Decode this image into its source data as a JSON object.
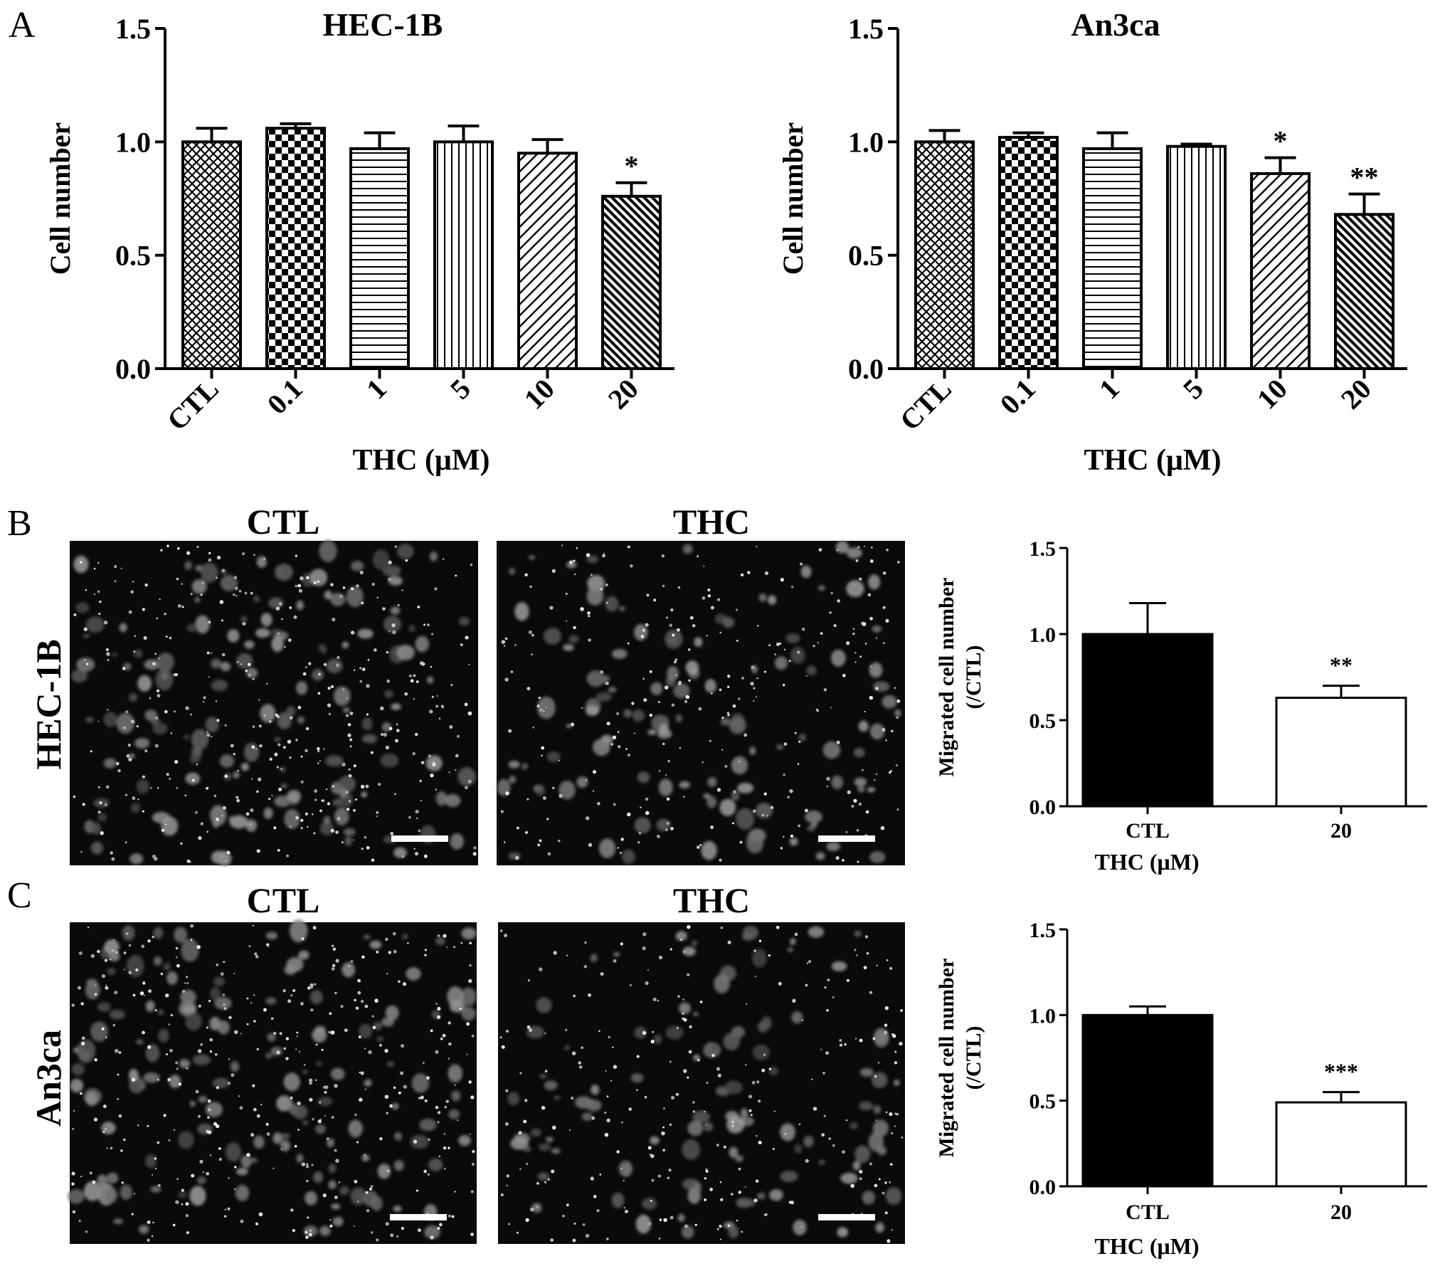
{
  "panels": {
    "A": "A",
    "B": "B",
    "C": "C"
  },
  "colors": {
    "axis": "#000000",
    "bar_fill_dark": "#000000",
    "bar_fill_light": "#ffffff",
    "micrograph_background": "#0a0a0a",
    "cell_glow": "#9a9a9a",
    "scale_bar": "#ffffff"
  },
  "micrographs": {
    "B": {
      "row_label": "HEC-1B",
      "left_title": "CTL",
      "right_title": "THC",
      "content": "fluorescent-migrated-cells",
      "scale_bar": true
    },
    "C": {
      "row_label": "An3ca",
      "left_title": "CTL",
      "right_title": "THC",
      "content": "fluorescent-migrated-cells",
      "scale_bar": true
    }
  },
  "chart_data": [
    {
      "id": "A-left",
      "type": "bar",
      "title": "HEC-1B",
      "xlabel": "THC (μM)",
      "ylabel": "Cell number",
      "categories": [
        "CTL",
        "0.1",
        "1",
        "5",
        "10",
        "20"
      ],
      "values": [
        1.0,
        1.06,
        0.97,
        1.0,
        0.95,
        0.76
      ],
      "errors": [
        0.06,
        0.02,
        0.07,
        0.07,
        0.06,
        0.06
      ],
      "significance": [
        "",
        "",
        "",
        "",
        "",
        "*"
      ],
      "patterns": [
        "crosshatch",
        "checker",
        "horizontal",
        "vertical",
        "diagonal",
        "diagonal-dense"
      ],
      "ylim": [
        0,
        1.5
      ],
      "yticks": [
        "0.0",
        "0.5",
        "1.0",
        "1.5"
      ],
      "ytick_values": [
        0,
        0.5,
        1.0,
        1.5
      ],
      "grid": false,
      "legend": "none"
    },
    {
      "id": "A-right",
      "type": "bar",
      "title": "An3ca",
      "xlabel": "THC (μM)",
      "ylabel": "Cell number",
      "categories": [
        "CTL",
        "0.1",
        "1",
        "5",
        "10",
        "20"
      ],
      "values": [
        1.0,
        1.02,
        0.97,
        0.98,
        0.86,
        0.68
      ],
      "errors": [
        0.05,
        0.02,
        0.07,
        0.01,
        0.07,
        0.09
      ],
      "significance": [
        "",
        "",
        "",
        "",
        "*",
        "**"
      ],
      "patterns": [
        "crosshatch",
        "checker",
        "horizontal",
        "vertical",
        "diagonal",
        "diagonal-dense"
      ],
      "ylim": [
        0,
        1.5
      ],
      "yticks": [
        "0.0",
        "0.5",
        "1.0",
        "1.5"
      ],
      "ytick_values": [
        0,
        0.5,
        1.0,
        1.5
      ],
      "grid": false,
      "legend": "none"
    },
    {
      "id": "B-chart",
      "type": "bar",
      "title": "",
      "xlabel": "THC (μM)",
      "ylabel": "Migrated cell number",
      "ylabel2": "(/CTL)",
      "categories": [
        "CTL",
        "20"
      ],
      "values": [
        1.0,
        0.63
      ],
      "errors": [
        0.18,
        0.07
      ],
      "significance": [
        "",
        "**"
      ],
      "fills": [
        "#000000",
        "#ffffff"
      ],
      "ylim": [
        0,
        1.5
      ],
      "yticks": [
        "0.0",
        "0.5",
        "1.0",
        "1.5"
      ],
      "ytick_values": [
        0,
        0.5,
        1.0,
        1.5
      ],
      "grid": false,
      "legend": "none"
    },
    {
      "id": "C-chart",
      "type": "bar",
      "title": "",
      "xlabel": "THC (μM)",
      "ylabel": "Migrated cell number",
      "ylabel2": "(/CTL)",
      "categories": [
        "CTL",
        "20"
      ],
      "values": [
        1.0,
        0.49
      ],
      "errors": [
        0.05,
        0.06
      ],
      "significance": [
        "",
        "***"
      ],
      "fills": [
        "#000000",
        "#ffffff"
      ],
      "ylim": [
        0,
        1.5
      ],
      "yticks": [
        "0.0",
        "0.5",
        "1.0",
        "1.5"
      ],
      "ytick_values": [
        0,
        0.5,
        1.0,
        1.5
      ],
      "grid": false,
      "legend": "none"
    }
  ]
}
